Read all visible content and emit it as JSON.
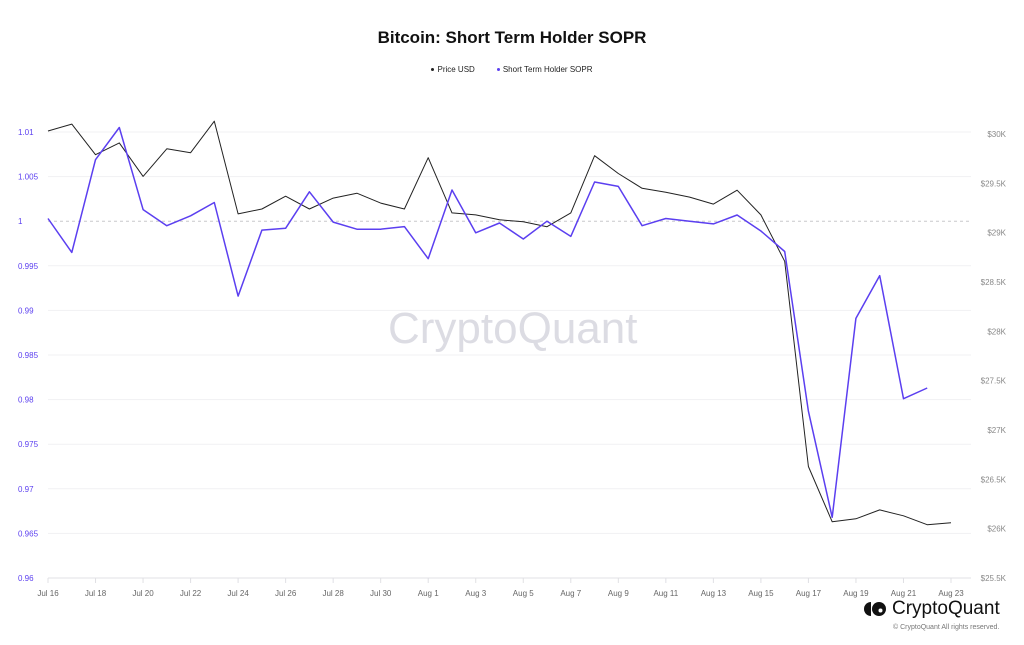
{
  "title": "Bitcoin: Short Term Holder SOPR",
  "legend": [
    {
      "label": "Price USD",
      "color": "#222222"
    },
    {
      "label": "Short Term Holder SOPR",
      "color": "#5b3ff0"
    }
  ],
  "watermark": "CryptoQuant",
  "logo": {
    "text": "CryptoQuant",
    "copyright": "© CryptoQuant All rights reserved."
  },
  "chart_data": {
    "type": "line",
    "title": "Bitcoin: Short Term Holder SOPR",
    "xlabel": "",
    "ylabel_left": "Short Term Holder SOPR",
    "ylabel_right": "Price USD",
    "x": [
      "Jul 16",
      "Jul 17",
      "Jul 18",
      "Jul 19",
      "Jul 20",
      "Jul 21",
      "Jul 22",
      "Jul 23",
      "Jul 24",
      "Jul 25",
      "Jul 26",
      "Jul 27",
      "Jul 28",
      "Jul 29",
      "Jul 30",
      "Jul 31",
      "Aug 1",
      "Aug 2",
      "Aug 3",
      "Aug 4",
      "Aug 5",
      "Aug 6",
      "Aug 7",
      "Aug 8",
      "Aug 9",
      "Aug 10",
      "Aug 11",
      "Aug 12",
      "Aug 13",
      "Aug 14",
      "Aug 15",
      "Aug 16",
      "Aug 17",
      "Aug 18",
      "Aug 19",
      "Aug 20",
      "Aug 21",
      "Aug 22",
      "Aug 23"
    ],
    "x_tick_labels": [
      "Jul 16",
      "Jul 18",
      "Jul 20",
      "Jul 22",
      "Jul 24",
      "Jul 26",
      "Jul 28",
      "Jul 30",
      "Aug 1",
      "Aug 3",
      "Aug 5",
      "Aug 7",
      "Aug 9",
      "Aug 11",
      "Aug 13",
      "Aug 15",
      "Aug 17",
      "Aug 19",
      "Aug 21",
      "Aug 23"
    ],
    "y_left_ticks": [
      "0.96",
      "0.965",
      "0.97",
      "0.975",
      "0.98",
      "0.985",
      "0.99",
      "0.995",
      "1",
      "1.005",
      "1.01"
    ],
    "y_left_range": [
      0.96,
      1.0115
    ],
    "y_right_ticks": [
      "$25.5K",
      "$26K",
      "$26.5K",
      "$27K",
      "$27.5K",
      "$28K",
      "$28.5K",
      "$29K",
      "$29.5K",
      "$30K"
    ],
    "y_right_range": [
      25500,
      30160
    ],
    "reference_line": {
      "axis": "left",
      "value": 1,
      "style": "dashed"
    },
    "grid": true,
    "legend_position": "top-center",
    "series": [
      {
        "name": "Price USD",
        "axis": "right",
        "color": "#222222",
        "values": [
          30030,
          30100,
          29790,
          29910,
          29570,
          29850,
          29810,
          30130,
          29190,
          29240,
          29370,
          29240,
          29350,
          29400,
          29300,
          29240,
          29760,
          29200,
          29180,
          29130,
          29110,
          29060,
          29200,
          29780,
          29600,
          29450,
          29410,
          29360,
          29290,
          29430,
          29180,
          28710,
          26630,
          26070,
          26100,
          26190,
          26130,
          26040,
          26060
        ]
      },
      {
        "name": "Short Term Holder SOPR",
        "axis": "left",
        "color": "#5b3ff0",
        "values": [
          1.0003,
          0.9965,
          1.0069,
          1.0105,
          1.0013,
          0.9995,
          1.0006,
          1.0021,
          0.9916,
          0.999,
          0.9992,
          1.0033,
          0.9999,
          0.9991,
          0.9991,
          0.9994,
          0.9958,
          1.0035,
          0.9987,
          0.9998,
          0.998,
          1.0,
          0.9983,
          1.0044,
          1.0039,
          0.9995,
          1.0003,
          1.0,
          0.9997,
          1.0007,
          0.9989,
          0.9966,
          0.9787,
          0.9668,
          0.9891,
          0.9939,
          0.9801,
          0.9813,
          null
        ]
      }
    ]
  }
}
